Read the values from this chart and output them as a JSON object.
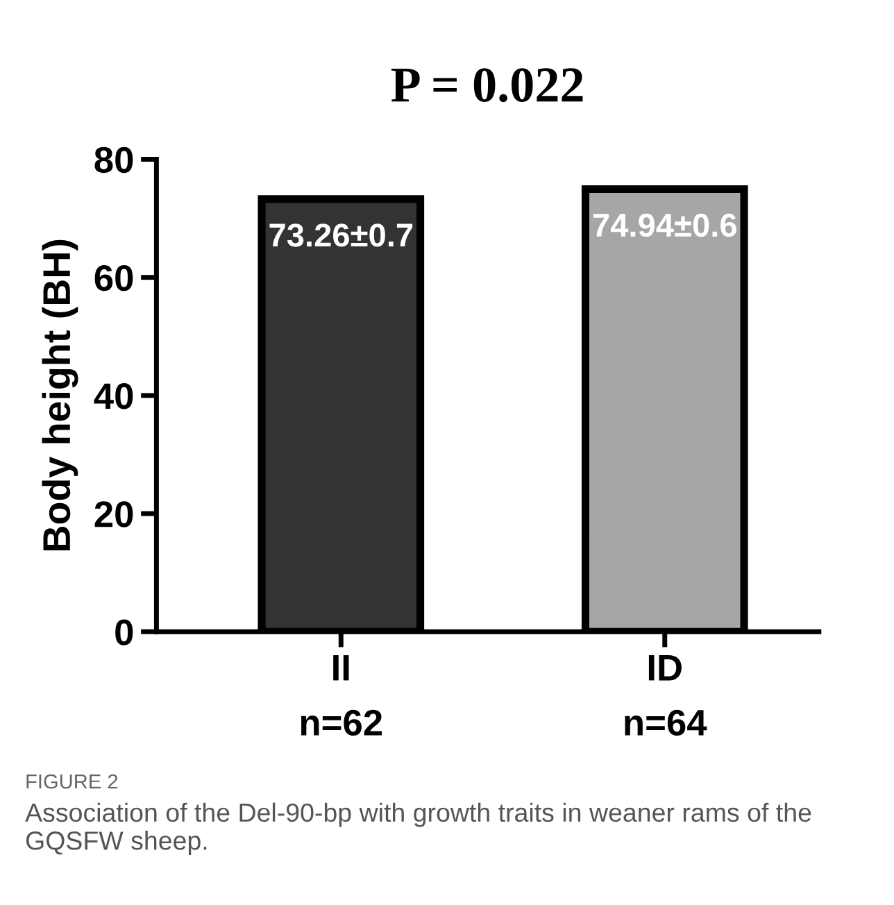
{
  "chart_data": {
    "type": "bar",
    "title": "P = 0.022",
    "ylabel": "Body height (BH)",
    "categories": [
      "II",
      "ID"
    ],
    "values": [
      73.26,
      74.94
    ],
    "value_labels": [
      "73.26±0.7",
      "74.94±0.6"
    ],
    "colors": [
      "#333333",
      "#a6a6a6"
    ],
    "ylim": [
      0,
      80
    ],
    "yticks": [
      0,
      20,
      40,
      60,
      80
    ],
    "grid": false,
    "legend": false,
    "annotations": [
      "n=62",
      "n=64",
      "FIGURE 2",
      "Association of the Del-90-bp with growth traits in weaner rams of the GQSFW sheep."
    ]
  }
}
